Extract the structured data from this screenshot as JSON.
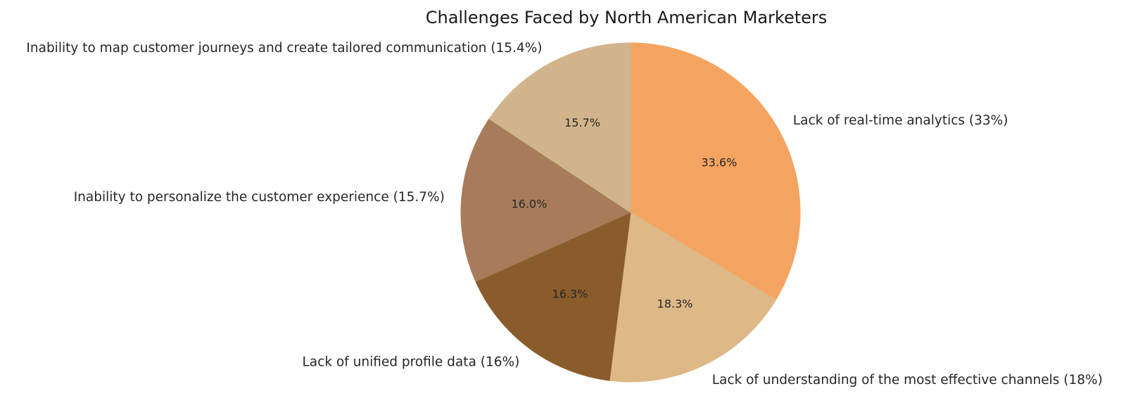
{
  "chart_data": {
    "type": "pie",
    "title": "Challenges Faced by North American Marketers",
    "start_angle_deg_from_top": 0,
    "direction": "clockwise",
    "label_distance": 1.1,
    "pct_distance": 0.6,
    "legend": "none",
    "background": "#ffffff",
    "text_color": "#262626",
    "title_color": "#1a1a1a",
    "slices": [
      {
        "label": "Lack of real-time analytics (33%)",
        "value": 33,
        "pct_label": "33.6%",
        "color": "#F4A460"
      },
      {
        "label": "Lack of understanding of the most effective channels (18%)",
        "value": 18,
        "pct_label": "18.3%",
        "color": "#DEB887"
      },
      {
        "label": "Lack of unified profile data (16%)",
        "value": 16,
        "pct_label": "16.3%",
        "color": "#8B5C2B"
      },
      {
        "label": "Inability to personalize the customer experience (15.7%)",
        "value": 15.7,
        "pct_label": "16.0%",
        "color": "#A87C5A"
      },
      {
        "label": "Inability to map customer journeys and create tailored communication (15.4%)",
        "value": 15.4,
        "pct_label": "15.7%",
        "color": "#D2B48C"
      }
    ]
  }
}
